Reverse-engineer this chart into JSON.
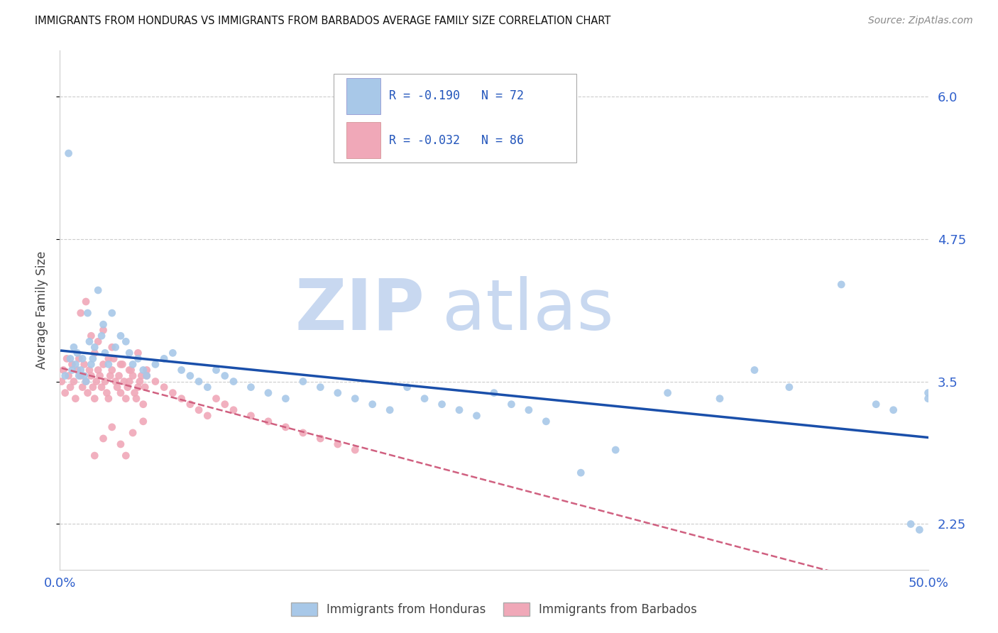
{
  "title": "IMMIGRANTS FROM HONDURAS VS IMMIGRANTS FROM BARBADOS AVERAGE FAMILY SIZE CORRELATION CHART",
  "source": "Source: ZipAtlas.com",
  "ylabel": "Average Family Size",
  "xlim": [
    0.0,
    0.5
  ],
  "ylim": [
    1.85,
    6.4
  ],
  "yticks": [
    2.25,
    3.5,
    4.75,
    6.0
  ],
  "xticks": [
    0.0,
    0.1,
    0.2,
    0.3,
    0.4,
    0.5
  ],
  "xticklabels": [
    "0.0%",
    "",
    "",
    "",
    "",
    "50.0%"
  ],
  "background_color": "#ffffff",
  "grid_color": "#cccccc",
  "honduras_color": "#a8c8e8",
  "barbados_color": "#f0a8b8",
  "honduras_line_color": "#1a4faa",
  "barbados_line_color": "#d06080",
  "watermark_zip_color": "#c8d8f0",
  "watermark_atlas_color": "#c8d8f0",
  "legend_line1": "R = -0.190   N = 72",
  "legend_line2": "R = -0.032   N = 86",
  "title_color": "#111111",
  "axis_label_color": "#444444",
  "tick_color": "#3060cc",
  "source_color": "#888888",
  "honduras_x": [
    0.003,
    0.005,
    0.006,
    0.007,
    0.008,
    0.009,
    0.01,
    0.011,
    0.012,
    0.013,
    0.014,
    0.015,
    0.016,
    0.017,
    0.018,
    0.019,
    0.02,
    0.022,
    0.024,
    0.025,
    0.026,
    0.028,
    0.03,
    0.032,
    0.035,
    0.038,
    0.04,
    0.042,
    0.045,
    0.048,
    0.05,
    0.055,
    0.06,
    0.065,
    0.07,
    0.075,
    0.08,
    0.085,
    0.09,
    0.095,
    0.1,
    0.11,
    0.12,
    0.13,
    0.14,
    0.15,
    0.16,
    0.17,
    0.18,
    0.19,
    0.2,
    0.21,
    0.22,
    0.23,
    0.24,
    0.25,
    0.26,
    0.27,
    0.28,
    0.3,
    0.32,
    0.35,
    0.38,
    0.4,
    0.42,
    0.45,
    0.47,
    0.48,
    0.49,
    0.495,
    0.5,
    0.5
  ],
  "honduras_y": [
    3.55,
    5.5,
    3.7,
    3.6,
    3.8,
    3.65,
    3.75,
    3.55,
    3.6,
    3.7,
    3.55,
    3.5,
    4.1,
    3.85,
    3.65,
    3.7,
    3.8,
    4.3,
    3.9,
    4.0,
    3.75,
    3.65,
    4.1,
    3.8,
    3.9,
    3.85,
    3.75,
    3.65,
    3.7,
    3.6,
    3.55,
    3.65,
    3.7,
    3.75,
    3.6,
    3.55,
    3.5,
    3.45,
    3.6,
    3.55,
    3.5,
    3.45,
    3.4,
    3.35,
    3.5,
    3.45,
    3.4,
    3.35,
    3.3,
    3.25,
    3.45,
    3.35,
    3.3,
    3.25,
    3.2,
    3.4,
    3.3,
    3.25,
    3.15,
    2.7,
    2.9,
    3.4,
    3.35,
    3.6,
    3.45,
    4.35,
    3.3,
    3.25,
    2.25,
    2.2,
    3.4,
    3.35
  ],
  "barbados_x": [
    0.001,
    0.002,
    0.003,
    0.004,
    0.005,
    0.006,
    0.007,
    0.008,
    0.009,
    0.01,
    0.011,
    0.012,
    0.013,
    0.014,
    0.015,
    0.016,
    0.017,
    0.018,
    0.019,
    0.02,
    0.021,
    0.022,
    0.023,
    0.024,
    0.025,
    0.026,
    0.027,
    0.028,
    0.029,
    0.03,
    0.031,
    0.032,
    0.033,
    0.034,
    0.035,
    0.036,
    0.037,
    0.038,
    0.039,
    0.04,
    0.041,
    0.042,
    0.043,
    0.044,
    0.045,
    0.046,
    0.047,
    0.048,
    0.049,
    0.05,
    0.012,
    0.015,
    0.018,
    0.02,
    0.022,
    0.025,
    0.028,
    0.03,
    0.035,
    0.04,
    0.045,
    0.05,
    0.055,
    0.06,
    0.065,
    0.07,
    0.075,
    0.08,
    0.085,
    0.09,
    0.095,
    0.1,
    0.11,
    0.12,
    0.13,
    0.14,
    0.15,
    0.16,
    0.17,
    0.02,
    0.025,
    0.03,
    0.035,
    0.038,
    0.042,
    0.048
  ],
  "barbados_y": [
    3.5,
    3.6,
    3.4,
    3.7,
    3.55,
    3.45,
    3.65,
    3.5,
    3.35,
    3.6,
    3.7,
    3.55,
    3.45,
    3.65,
    3.5,
    3.4,
    3.6,
    3.55,
    3.45,
    3.35,
    3.5,
    3.6,
    3.55,
    3.45,
    3.65,
    3.5,
    3.4,
    3.35,
    3.55,
    3.6,
    3.7,
    3.5,
    3.45,
    3.55,
    3.4,
    3.65,
    3.5,
    3.35,
    3.45,
    3.5,
    3.6,
    3.55,
    3.4,
    3.35,
    3.45,
    3.5,
    3.55,
    3.3,
    3.45,
    3.6,
    4.1,
    4.2,
    3.9,
    3.75,
    3.85,
    3.95,
    3.7,
    3.8,
    3.65,
    3.6,
    3.75,
    3.55,
    3.5,
    3.45,
    3.4,
    3.35,
    3.3,
    3.25,
    3.2,
    3.35,
    3.3,
    3.25,
    3.2,
    3.15,
    3.1,
    3.05,
    3.0,
    2.95,
    2.9,
    2.85,
    3.0,
    3.1,
    2.95,
    2.85,
    3.05,
    3.15
  ],
  "bottom_legend_honduras": "Immigrants from Honduras",
  "bottom_legend_barbados": "Immigrants from Barbados"
}
